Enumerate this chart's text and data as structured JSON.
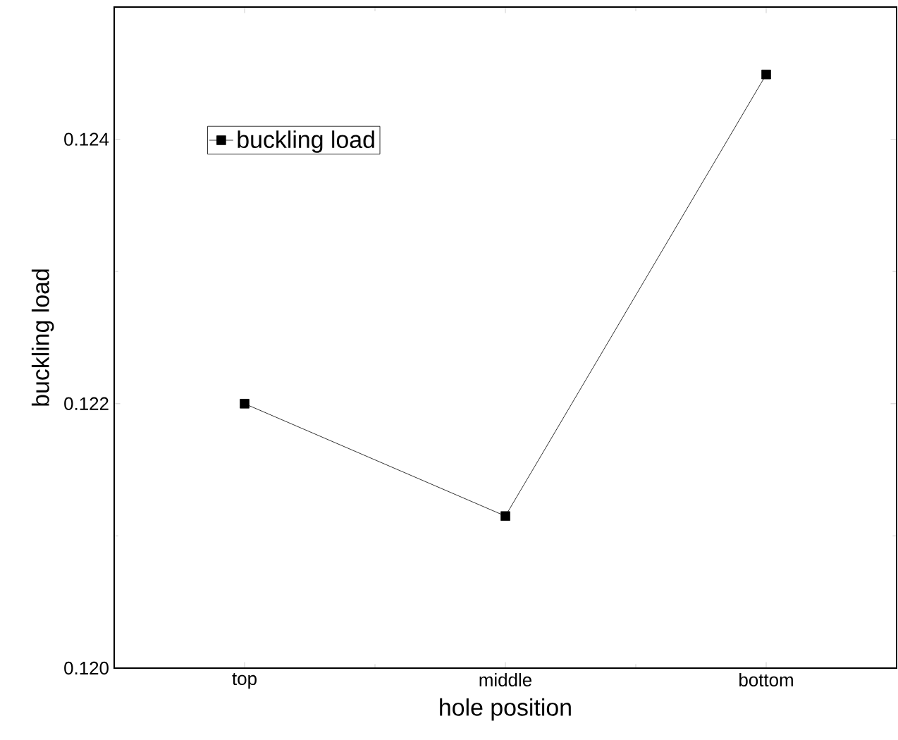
{
  "chart_data": {
    "type": "line",
    "xlabel": "hole position",
    "ylabel": "buckling load",
    "categories": [
      "top",
      "middle",
      "bottom"
    ],
    "series": [
      {
        "name": "buckling load",
        "color": "#000000",
        "values": [
          0.122,
          0.12115,
          0.12449
        ]
      }
    ],
    "ylim": [
      0.12,
      0.125
    ],
    "yticks": [
      {
        "value": 0.12,
        "label": "0.120"
      },
      {
        "value": 0.122,
        "label": "0.122"
      },
      {
        "value": 0.124,
        "label": "0.124"
      }
    ],
    "marker": "square",
    "line_style": "solid",
    "legend": "top left",
    "grid": false
  }
}
